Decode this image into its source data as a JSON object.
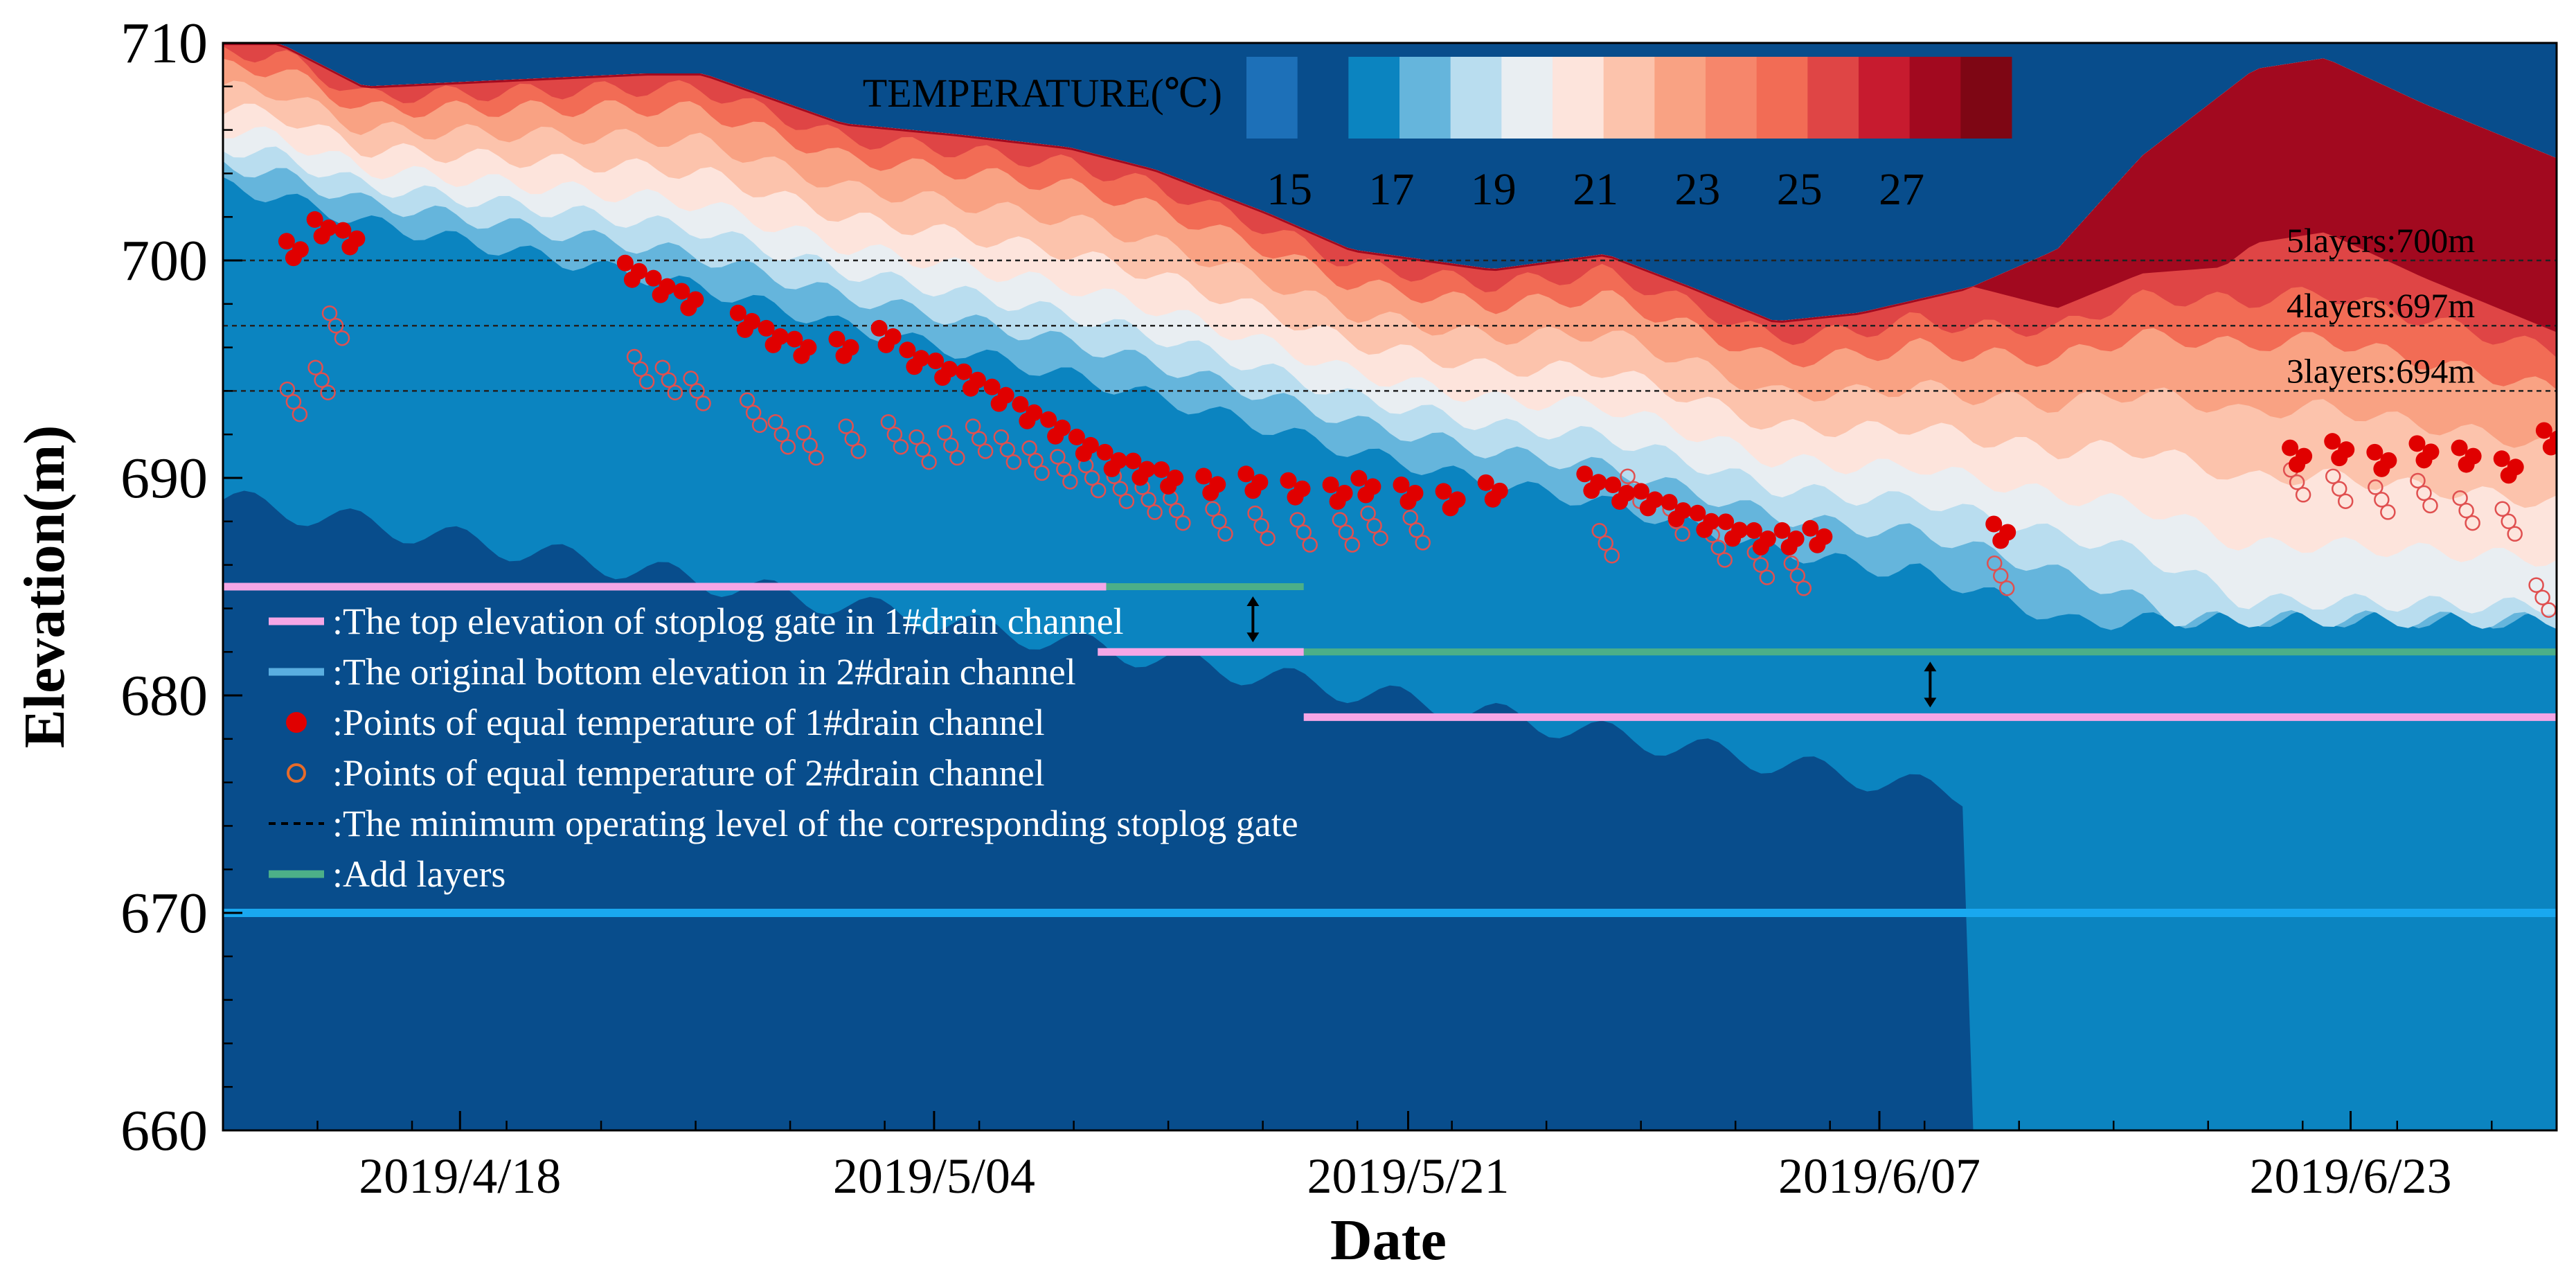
{
  "chart_data": {
    "type": "area",
    "title": "",
    "xlabel": "Date",
    "ylabel": "Elevation(m)",
    "ylim": [
      660,
      710
    ],
    "yticks": [
      660,
      670,
      680,
      690,
      700,
      710
    ],
    "xlim_days": [
      0,
      82.7
    ],
    "xticks": [
      {
        "label": "2019/4/18",
        "day": 8.4
      },
      {
        "label": "2019/5/04",
        "day": 25.2
      },
      {
        "label": "2019/5/21",
        "day": 42.0
      },
      {
        "label": "2019/6/07",
        "day": 58.7
      },
      {
        "label": "2019/6/23",
        "day": 75.4
      }
    ],
    "colorbar": {
      "title": "TEMPERATURE(℃)",
      "tick_labels": [
        "15",
        "17",
        "19",
        "21",
        "23",
        "25",
        "27"
      ],
      "colors": [
        "#1d70b8",
        "#084d8c",
        "#0b84c0",
        "#65b5dc",
        "#b9ddef",
        "#e9eef2",
        "#fde4dc",
        "#fcc3ac",
        "#f9a283",
        "#f6866b",
        "#f26c55",
        "#df4545",
        "#c71b2f",
        "#a2091f",
        "#7e0614"
      ]
    },
    "water_surface": {
      "day": [
        0,
        2,
        5,
        15,
        17,
        22,
        26,
        30,
        33,
        37,
        40,
        45,
        49,
        52,
        55,
        58,
        62,
        65,
        68,
        72,
        74.5,
        78,
        82.7
      ],
      "elevation": [
        710,
        710,
        708,
        708.6,
        708.6,
        706.3,
        705.8,
        705.2,
        704.2,
        702.2,
        700.5,
        699.6,
        700.3,
        698.8,
        697.2,
        697.6,
        698.8,
        700.5,
        704.8,
        708.8,
        709.3,
        707.2,
        704.7
      ]
    },
    "series": [
      {
        "name": "Points of equal temperature of 1#drain channel",
        "marker": "filled-circle",
        "color": "#e00000",
        "day": [
          2.5,
          3.5,
          4.5,
          14.5,
          15.5,
          16.5,
          18.5,
          19.5,
          20.5,
          22.0,
          23.5,
          24.5,
          25.5,
          26.5,
          27.5,
          28.5,
          29.5,
          30.5,
          31.5,
          32.5,
          33.5,
          35.0,
          36.5,
          38.0,
          39.5,
          40.5,
          42.0,
          43.5,
          45.0,
          48.5,
          49.5,
          50.5,
          51.5,
          52.5,
          53.5,
          54.5,
          55.5,
          56.5,
          63.0,
          73.5,
          75.0,
          76.5,
          78.0,
          79.5,
          81.0,
          82.5
        ],
        "elevation": [
          700.5,
          701.5,
          701.0,
          699.5,
          698.8,
          698.2,
          697.2,
          696.5,
          696.0,
          696.0,
          696.5,
          695.5,
          695.0,
          694.5,
          693.8,
          693.0,
          692.3,
          691.5,
          690.8,
          690.4,
          690.0,
          689.7,
          689.8,
          689.5,
          689.3,
          689.6,
          689.3,
          689.0,
          689.4,
          689.8,
          689.3,
          689.0,
          688.5,
          688.0,
          687.6,
          687.2,
          687.2,
          687.3,
          687.5,
          691.0,
          691.3,
          690.8,
          691.2,
          691.0,
          690.5,
          691.8
        ]
      },
      {
        "name": "Points of equal temperature of 2#drain channel",
        "marker": "open-circle",
        "color": "#e05050",
        "day": [
          2.5,
          3.5,
          4.0,
          14.8,
          15.8,
          16.8,
          18.8,
          19.8,
          20.8,
          22.3,
          23.8,
          24.8,
          25.8,
          26.8,
          27.8,
          28.8,
          29.8,
          30.8,
          31.8,
          32.8,
          33.8,
          35.3,
          36.8,
          38.3,
          39.8,
          40.8,
          42.3,
          49.0,
          50.0,
          51.5,
          53.0,
          54.5,
          55.8,
          63.0,
          73.5,
          75.0,
          76.5,
          78.0,
          79.5,
          81.0,
          82.2
        ],
        "elevation": [
          693.5,
          694.5,
          697.0,
          695.0,
          694.5,
          694.0,
          693.0,
          692.0,
          691.5,
          691.8,
          692.0,
          691.3,
          691.5,
          691.8,
          691.3,
          690.8,
          690.4,
          690.0,
          689.5,
          689.0,
          688.5,
          688.0,
          687.8,
          687.5,
          687.5,
          687.8,
          687.6,
          687.0,
          689.5,
          688.0,
          686.8,
          686.0,
          685.5,
          685.5,
          689.8,
          689.5,
          689.0,
          689.3,
          688.5,
          688.0,
          684.5
        ]
      }
    ],
    "reference_lines": {
      "minimum_operating_levels": [
        {
          "label": "5layers:700m",
          "elevation": 700
        },
        {
          "label": "4layers:697m",
          "elevation": 697
        },
        {
          "label": "3layers:694m",
          "elevation": 694
        }
      ],
      "stoplog_gate_top_1": [
        {
          "elevation": 685,
          "day_start": 0,
          "day_end": 31.3
        },
        {
          "elevation": 682,
          "day_start": 31.0,
          "day_end": 38.3
        },
        {
          "elevation": 679,
          "day_start": 38.3,
          "day_end": 82.7
        }
      ],
      "add_layers": [
        {
          "elevation": 685,
          "day_start": 31.3,
          "day_end": 38.3
        },
        {
          "elevation": 682,
          "day_start": 38.3,
          "day_end": 82.7
        }
      ],
      "bottom_elevation_2": {
        "elevation": 670,
        "day_start": 0,
        "day_end": 82.7
      },
      "arrows": [
        {
          "day": 36.5,
          "from": 682,
          "to": 685
        },
        {
          "day": 60.5,
          "from": 679,
          "to": 682
        }
      ]
    },
    "legend": {
      "position": "middle-left",
      "entries": [
        {
          "symbol": "pink-line",
          "color": "#f5a6e6",
          "label": ":The top elevation of stoplog gate in 1#drain channel"
        },
        {
          "symbol": "blue-line",
          "color": "#5aaee0",
          "label": ":The original bottom elevation in 2#drain channel"
        },
        {
          "symbol": "filled-circle",
          "color": "#e00000",
          "label": ":Points of equal temperature of 1#drain channel"
        },
        {
          "symbol": "open-circle",
          "color": "#e86b2a",
          "label": ":Points of equal temperature of 2#drain channel"
        },
        {
          "symbol": "dashed-line",
          "color": "#000000",
          "label": ":The minimum operating level of the corresponding stoplog gate"
        },
        {
          "symbol": "green-line",
          "color": "#4caf88",
          "label": ":Add  layers"
        }
      ]
    }
  }
}
